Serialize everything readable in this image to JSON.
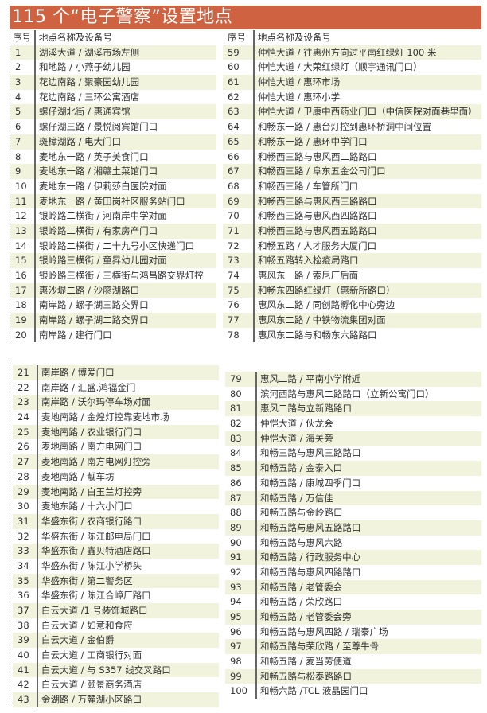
{
  "title": "115 个“电子警察”设置地点",
  "header": {
    "num": "序号",
    "name": "地点名称及设备号"
  },
  "colors": {
    "title_bg": "#cf6241",
    "stripe": "#f2f3dc"
  },
  "top_left": [
    [
      "1",
      "湖溪大道 / 湖溪市场左侧"
    ],
    [
      "2",
      "和地路 / 小燕子幼儿园"
    ],
    [
      "3",
      "花边南路 / 聚豪园幼儿园"
    ],
    [
      "4",
      "花边南路 / 三环公寓酒店"
    ],
    [
      "5",
      "螺仔湖北街 / 惠通宾馆"
    ],
    [
      "6",
      "螺仔湖三路 / 景悦阅宾馆门口"
    ],
    [
      "7",
      "斑樟湖路 / 电大门口"
    ],
    [
      "8",
      "麦地东一路 / 英子美食门口"
    ],
    [
      "9",
      "麦地东一路 / 湘赣土菜馆门口"
    ],
    [
      "10",
      "麦地东一路 / 伊莉莎白医院对面"
    ],
    [
      "11",
      "麦地东一路 / 黄田岗社区服务站门口"
    ],
    [
      "12",
      "银岭路二横街 / 河南岸中学对面"
    ],
    [
      "13",
      "银岭路二横街 / 有家房产门口"
    ],
    [
      "14",
      "银岭路二横街 / 二十九号小区快递门口"
    ],
    [
      "15",
      "银岭路三横街 / 童昇幼儿园对面"
    ],
    [
      "16",
      "银岭路三横街 / 三横街与鸿昌路交界灯控"
    ],
    [
      "17",
      "惠沙堤二路 / 沙廖湖路口"
    ],
    [
      "18",
      "南岸路 / 螺子湖三路交界口"
    ],
    [
      "19",
      "南岸路 / 螺子湖二路交界口"
    ],
    [
      "20",
      "南岸路 / 建行门口"
    ]
  ],
  "top_right": [
    [
      "59",
      "仲恺大道 / 往惠州方向过平南红绿灯 100 米"
    ],
    [
      "60",
      "仲恺大道 / 大荣红绿灯（顺宇通讯门口）"
    ],
    [
      "61",
      "仲恺大道 / 惠环市场"
    ],
    [
      "62",
      "仲恺大道 / 惠环小学"
    ],
    [
      "63",
      "仲恺大道 / 卫康中西药业门口（中信医院对面巷里面）"
    ],
    [
      "64",
      "和畅东一路 / 惠台灯控到惠环桥洞中间位置"
    ],
    [
      "65",
      "和畅东一路 / 惠环中学门口"
    ],
    [
      "66",
      "和畅西三路与惠风西二路路口"
    ],
    [
      "67",
      "和畅西三路 / 阜东五金公司门口"
    ],
    [
      "68",
      "和畅西三路 / 车管所门口"
    ],
    [
      "69",
      "和畅西三路与惠风西三路路口"
    ],
    [
      "70",
      "和畅西三路与惠风西四路路口"
    ],
    [
      "71",
      "和畅西三路与惠风西五路路口"
    ],
    [
      "72",
      "和畅五路 / 人才服务大厦门口"
    ],
    [
      "73",
      "和畅五路转入检疫局路口"
    ],
    [
      "74",
      "惠风东一路 / 索尼厂后面"
    ],
    [
      "75",
      "和畅东四路红绿灯（惠新所路口）"
    ],
    [
      "76",
      "惠风东二路 / 同创路孵化中心旁边"
    ],
    [
      "77",
      "惠风东二路 / 中铁物流集团对面"
    ],
    [
      "78",
      "惠风东二路与和畅东六路路口"
    ]
  ],
  "bottom_left": [
    [
      "21",
      "南岸路 / 博爱门口"
    ],
    [
      "22",
      "南岸路 / 汇盛.鸿福金门"
    ],
    [
      "23",
      "南岸路 / 沃尔玛停车场对面"
    ],
    [
      "24",
      "麦地南路 / 金煌灯控靠麦地市场"
    ],
    [
      "25",
      "麦地南路 / 农业银行门口"
    ],
    [
      "26",
      "麦地南路 / 南方电网门口"
    ],
    [
      "27",
      "麦地南路 / 南方电网灯控旁"
    ],
    [
      "28",
      "麦地南路 / 靓车坊"
    ],
    [
      "29",
      "麦地南路 / 白玉兰灯控旁"
    ],
    [
      "30",
      "麦地东路 / 十六小门口"
    ],
    [
      "31",
      "华盛东街 / 农商银行路口"
    ],
    [
      "32",
      "华盛东街 / 陈江邮电局门口"
    ],
    [
      "33",
      "华盛东街 / 鑫贝特酒店路口"
    ],
    [
      "34",
      "华盛东街 / 陈江小学桥头"
    ],
    [
      "35",
      "华盛东街 / 第二警务区"
    ],
    [
      "36",
      "华盛东街 / 陈江合嶂厂路口"
    ],
    [
      "37",
      "白云大道 /1 号装饰城路口"
    ],
    [
      "38",
      "白云大道 / 如意和食府"
    ],
    [
      "39",
      "白云大道 / 金伯爵"
    ],
    [
      "40",
      "白云大道 / 工商银行对面"
    ],
    [
      "41",
      "白云大道 / 与 S357 线交叉路口"
    ],
    [
      "42",
      "白云大道 / 颐景商务酒店"
    ],
    [
      "43",
      "金湖路 / 万麓湖小区路口"
    ]
  ],
  "bottom_right": [
    [
      "79",
      "惠风二路 / 平南小学附近"
    ],
    [
      "80",
      "滨河西路与惠风二路路口（立新公寓门口）"
    ],
    [
      "81",
      "惠风二路与立新路路口"
    ],
    [
      "82",
      "仲恺大道 / 伙龙会"
    ],
    [
      "83",
      "仲恺大道 / 海关旁"
    ],
    [
      "84",
      "和畅三路与惠风三路路口"
    ],
    [
      "85",
      "和畅五路 / 金泰入口"
    ],
    [
      "86",
      "和畅五路 / 康城四季门口"
    ],
    [
      "87",
      "和畅五路 / 万信佳"
    ],
    [
      "88",
      "和畅五路与金岭路口"
    ],
    [
      "89",
      "和畅五路与惠风五路路口"
    ],
    [
      "90",
      "和畅五路与惠风六路"
    ],
    [
      "91",
      "和畅五路 / 行政服务中心"
    ],
    [
      "92",
      "和畅五路与惠风四路路口"
    ],
    [
      "93",
      "和畅五路 / 老管委会"
    ],
    [
      "94",
      "和畅五路 / 荣欣路口"
    ],
    [
      "95",
      "和畅五路 / 老管委会旁"
    ],
    [
      "96",
      "和畅五路与惠风四路 / 瑞泰广场"
    ],
    [
      "97",
      "和畅五路与荣欣路 / 至尊牛骨"
    ],
    [
      "98",
      "和畅五路 / 麦当劳便道"
    ],
    [
      "99",
      "和畅五路与松泰路路口"
    ],
    [
      "100",
      "和畅六路 /TCL 液晶园门口"
    ]
  ]
}
